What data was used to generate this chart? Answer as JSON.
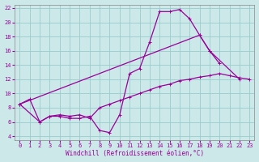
{
  "xlabel": "Windchill (Refroidissement éolien,°C)",
  "line_color": "#990099",
  "bg_color": "#cce8e8",
  "grid_color": "#99cccc",
  "xlim": [
    -0.5,
    23.5
  ],
  "ylim": [
    3.5,
    22.5
  ],
  "xticks": [
    0,
    1,
    2,
    3,
    4,
    5,
    6,
    7,
    8,
    9,
    10,
    11,
    12,
    13,
    14,
    15,
    16,
    17,
    18,
    19,
    20,
    21,
    22,
    23
  ],
  "yticks": [
    4,
    6,
    8,
    10,
    12,
    14,
    16,
    18,
    20,
    22
  ],
  "line1_x": [
    0,
    1,
    2,
    3,
    4,
    5,
    6,
    7,
    8,
    9,
    10,
    11,
    12,
    13,
    14,
    15,
    16,
    17,
    18,
    19,
    20
  ],
  "line1_y": [
    8.5,
    9.2,
    6.0,
    6.8,
    6.8,
    6.5,
    6.5,
    6.8,
    4.8,
    4.5,
    7.0,
    12.8,
    13.5,
    17.2,
    21.5,
    21.5,
    21.8,
    20.5,
    18.2,
    16.0,
    14.2
  ],
  "line2_x": [
    0,
    18,
    19,
    22
  ],
  "line2_y": [
    8.5,
    18.2,
    16.0,
    12.0
  ],
  "line3_x": [
    0,
    2,
    3,
    4,
    5,
    6,
    7,
    8,
    9,
    10,
    11,
    12,
    13,
    14,
    15,
    16,
    17,
    18,
    19,
    20,
    21,
    22,
    23
  ],
  "line3_y": [
    8.5,
    6.0,
    6.8,
    7.0,
    6.8,
    7.0,
    6.5,
    8.0,
    8.5,
    9.0,
    9.5,
    10.0,
    10.5,
    11.0,
    11.3,
    11.8,
    12.0,
    12.3,
    12.5,
    12.8,
    12.5,
    12.2,
    12.0
  ]
}
